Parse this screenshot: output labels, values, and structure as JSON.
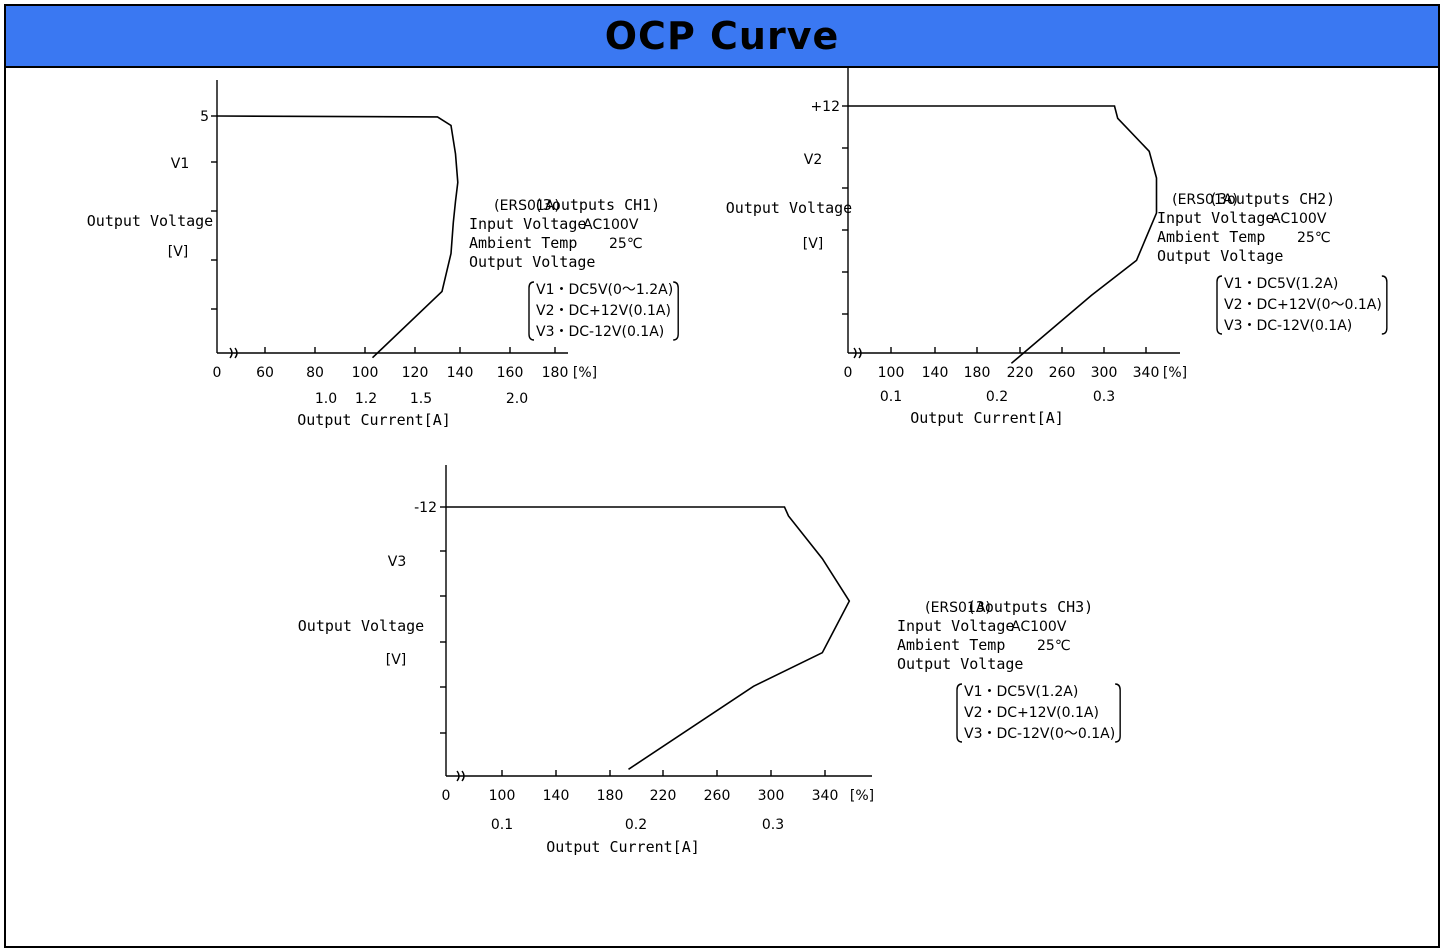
{
  "header": {
    "title": "OCP Curve",
    "bg_color": "#3a78f2"
  },
  "chart_data": [
    {
      "type": "line",
      "ytick_labels": [
        "5"
      ],
      "ylabel": [
        "V1",
        "Output Voltage",
        "[V]"
      ],
      "xticks": [
        0,
        60,
        80,
        100,
        120,
        140,
        160,
        180
      ],
      "xtick_unit": "[%]",
      "x2ticks": [
        "1.0",
        "1.2",
        "1.5",
        "2.0"
      ],
      "xlabel": "Output Current[A]",
      "series": [
        {
          "x": [
            0,
            130,
            136,
            138,
            139,
            138,
            137,
            136,
            132,
            103
          ],
          "y": [
            5,
            4.98,
            4.8,
            4.2,
            3.6,
            3.2,
            2.75,
            2.1,
            1.3,
            -0.1
          ]
        }
      ],
      "legend": {
        "heading_model": "(ERS01A)",
        "heading_rest": "(3outputs CH1)",
        "lines": [
          [
            "Input Voltage",
            "AC100V"
          ],
          [
            "Ambient Temp",
            "25℃"
          ],
          [
            "Output Voltage",
            ""
          ]
        ],
        "outputs": [
          "V1・DC5V(0～1.2A)",
          "V2・DC+12V(0.1A)",
          "V3・DC-12V(0.1A)"
        ]
      }
    },
    {
      "type": "line",
      "ytick_labels": [
        "+12"
      ],
      "ylabel": [
        "V2",
        "Output Voltage",
        "[V]"
      ],
      "xticks": [
        0,
        100,
        140,
        180,
        220,
        260,
        300,
        340
      ],
      "xtick_unit": "[%]",
      "x2ticks": [
        "0.1",
        "0.2",
        "0.3"
      ],
      "xlabel": "Output Current[A]",
      "series": [
        {
          "x": [
            0,
            310,
            313,
            343,
            350,
            350,
            331,
            288,
            212
          ],
          "y": [
            12,
            12,
            11.4,
            9.8,
            8.5,
            6.8,
            4.5,
            2.8,
            -0.5
          ]
        }
      ],
      "legend": {
        "heading_model": "(ERS01A)",
        "heading_rest": "(3outputs CH2)",
        "lines": [
          [
            "Input Voltage",
            "AC100V"
          ],
          [
            "Ambient Temp",
            "25℃"
          ],
          [
            "Output Voltage",
            ""
          ]
        ],
        "outputs": [
          "V1・DC5V(1.2A)",
          "V2・DC+12V(0～0.1A)",
          "V3・DC-12V(0.1A)"
        ]
      }
    },
    {
      "type": "line",
      "ytick_labels": [
        "-12"
      ],
      "ylabel": [
        "V3",
        "Output Voltage",
        "[V]"
      ],
      "xticks": [
        0,
        100,
        140,
        180,
        220,
        260,
        300,
        340
      ],
      "xtick_unit": "[%]",
      "x2ticks": [
        "0.1",
        "0.2",
        "0.3"
      ],
      "xlabel": "Output Current[A]",
      "series": [
        {
          "x": [
            0,
            310,
            313,
            338,
            358,
            338,
            287,
            194
          ],
          "y": [
            -12,
            -12,
            -11.6,
            -9.7,
            -7.8,
            -5.5,
            -4,
            -0.3
          ]
        }
      ],
      "legend": {
        "heading_model": "(ERS01A)",
        "heading_rest": "(3outputs CH3)",
        "lines": [
          [
            "Input Voltage",
            "AC100V"
          ],
          [
            "Ambient Temp",
            "25℃"
          ],
          [
            "Output Voltage",
            ""
          ]
        ],
        "outputs": [
          "V1・DC5V(1.2A)",
          "V2・DC+12V(0.1A)",
          "V3・DC-12V(0～0.1A)"
        ]
      }
    }
  ]
}
